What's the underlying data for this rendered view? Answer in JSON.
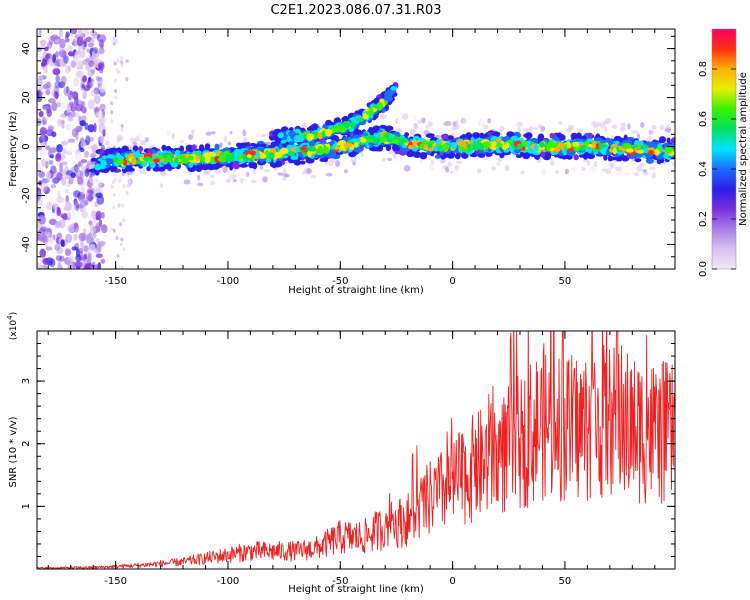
{
  "title": "C2E1.2023.086.07.31.R03",
  "colors": {
    "snr_line": "#ee2222",
    "axis": "#000000"
  },
  "chart_data": [
    {
      "type": "heatmap",
      "xlabel": "Height of straight line (km)",
      "ylabel": "Frequency (Hz)",
      "xlim": [
        -185,
        99
      ],
      "ylim": [
        -50,
        48
      ],
      "x_ticks": [
        -150,
        -100,
        -50,
        0,
        50
      ],
      "y_ticks": [
        -40,
        -20,
        0,
        20,
        40
      ],
      "colorbar": {
        "label": "Normalized spectral amplitude",
        "range": [
          0.0,
          0.96
        ],
        "ticks": [
          0.0,
          0.2,
          0.4,
          0.6,
          0.8
        ],
        "colormap": [
          "#f2e8f4",
          "#d9c2ef",
          "#a87ce8",
          "#7a2fe0",
          "#2a1ee6",
          "#1e6cff",
          "#00e5ff",
          "#00e060",
          "#3bf000",
          "#e8f000",
          "#ffb000",
          "#ff3010",
          "#ff0060"
        ]
      },
      "ridge": [
        {
          "x": -155,
          "y": -6
        },
        {
          "x": -140,
          "y": -5
        },
        {
          "x": -120,
          "y": -5
        },
        {
          "x": -100,
          "y": -4
        },
        {
          "x": -80,
          "y": -3
        },
        {
          "x": -65,
          "y": -2
        },
        {
          "x": -50,
          "y": 0
        },
        {
          "x": -40,
          "y": 2
        },
        {
          "x": -30,
          "y": 4
        },
        {
          "x": -20,
          "y": 1
        },
        {
          "x": 0,
          "y": 0
        },
        {
          "x": 20,
          "y": 1
        },
        {
          "x": 40,
          "y": 0
        },
        {
          "x": 60,
          "y": 0
        },
        {
          "x": 80,
          "y": -1
        },
        {
          "x": 99,
          "y": -2
        }
      ],
      "branch": [
        {
          "x": -80,
          "y": 3
        },
        {
          "x": -60,
          "y": 5
        },
        {
          "x": -45,
          "y": 9
        },
        {
          "x": -35,
          "y": 15
        },
        {
          "x": -25,
          "y": 23
        }
      ]
    },
    {
      "type": "line",
      "xlabel": "Height of straight line (km)",
      "ylabel": "SNR (10 * v/v)",
      "multiplier": "(x10",
      "multiplier_exp": "4",
      "multiplier_close": ")",
      "xlim": [
        -185,
        99
      ],
      "ylim": [
        0,
        3.8
      ],
      "x_ticks": [
        -150,
        -100,
        -50,
        0,
        50
      ],
      "y_ticks": [
        1,
        2,
        3
      ],
      "series": [
        {
          "x": [
            -185,
            -160,
            -140,
            -120,
            -100,
            -90,
            -80,
            -70,
            -60,
            -50,
            -40,
            -30,
            -20,
            -10,
            0,
            10,
            20,
            30,
            40,
            50,
            60,
            70,
            80,
            90,
            99
          ],
          "y": [
            0.01,
            0.02,
            0.05,
            0.1,
            0.2,
            0.25,
            0.25,
            0.25,
            0.3,
            0.45,
            0.45,
            0.6,
            0.7,
            1.0,
            1.2,
            1.45,
            1.6,
            1.8,
            2.1,
            2.0,
            2.05,
            2.1,
            2.0,
            1.95,
            1.9
          ]
        }
      ]
    }
  ]
}
